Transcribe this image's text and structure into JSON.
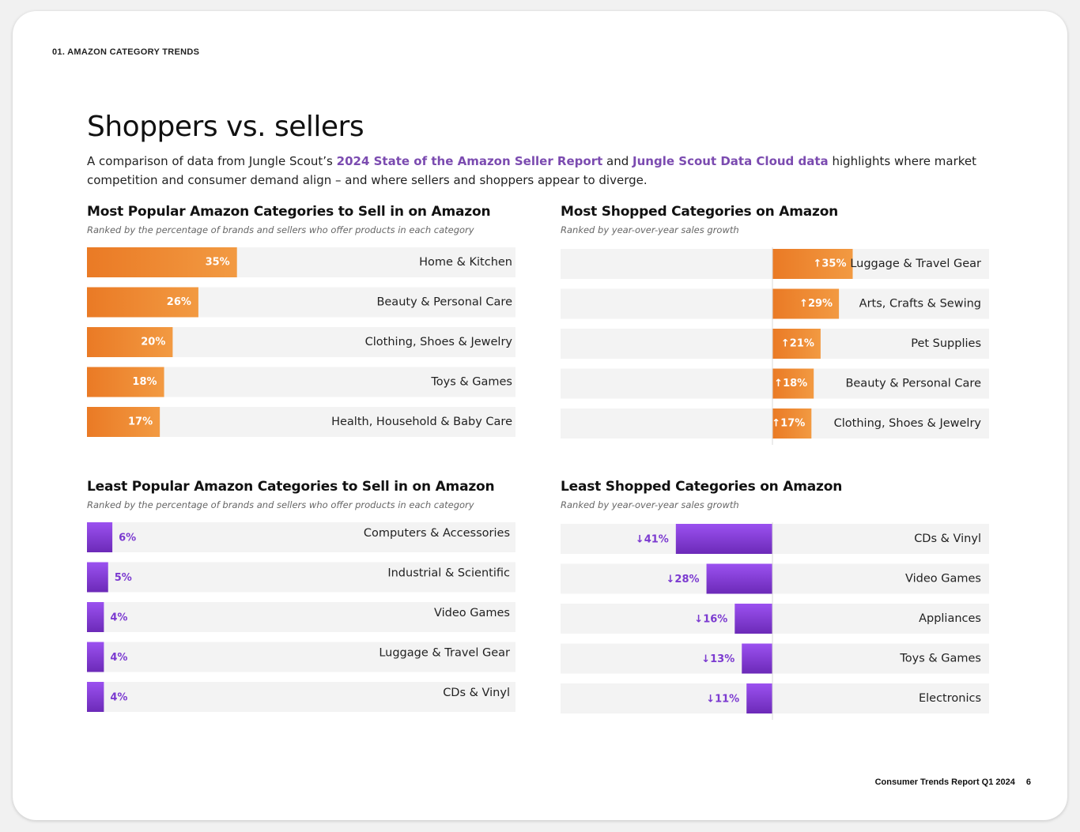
{
  "header": {
    "section_label": "01. AMAZON CATEGORY TRENDS",
    "title": "Shoppers vs. sellers",
    "intro_1": "A comparison of data from Jungle Scout’s ",
    "intro_link_1": "2024 State of the Amazon Seller Report",
    "intro_2": " and ",
    "intro_link_2": "Jungle Scout Data Cloud data",
    "intro_3": " highlights where market competition and consumer demand align –  and where sellers and shoppers appear to diverge."
  },
  "colors": {
    "orange": "#f07f24",
    "purple": "#8a3fe0",
    "link_purple": "#7b4bb0",
    "track": "#f3f3f3"
  },
  "chart_data": [
    {
      "type": "bar",
      "title": "Most Popular Amazon Categories to Sell in on Amazon",
      "subtitle": "Ranked by the percentage of brands and sellers who offer products in each category",
      "categories": [
        "Home & Kitchen",
        "Beauty & Personal Care",
        "Clothing, Shoes & Jewelry",
        "Toys & Games",
        "Health, Household & Baby Care"
      ],
      "values": [
        35,
        26,
        20,
        18,
        17
      ],
      "labels": [
        "35%",
        "26%",
        "20%",
        "18%",
        "17%"
      ],
      "unit": "%"
    },
    {
      "type": "bar",
      "title": "Most Shopped Categories on Amazon",
      "subtitle": "Ranked by year-over-year sales growth",
      "categories": [
        "Luggage & Travel Gear",
        "Arts, Crafts & Sewing",
        "Pet Supplies",
        "Beauty & Personal Care",
        "Clothing, Shoes & Jewelry"
      ],
      "values": [
        35,
        29,
        21,
        18,
        17
      ],
      "labels": [
        "↑35%",
        "↑29%",
        "↑21%",
        "↑18%",
        "↑17%"
      ],
      "unit": "%"
    },
    {
      "type": "bar",
      "title": "Least Popular Amazon Categories to Sell in on Amazon",
      "subtitle": "Ranked by the percentage of brands and sellers who offer products in each category",
      "categories": [
        "Computers & Accessories",
        "Industrial & Scientific",
        "Video Games",
        "Luggage & Travel Gear",
        "CDs & Vinyl"
      ],
      "values": [
        6,
        5,
        4,
        4,
        4
      ],
      "labels": [
        "6%",
        "5%",
        "4%",
        "4%",
        "4%"
      ],
      "unit": "%"
    },
    {
      "type": "bar",
      "title": "Least Shopped Categories on Amazon",
      "subtitle": "Ranked by year-over-year sales growth",
      "categories": [
        "CDs & Vinyl",
        "Video Games",
        "Appliances",
        "Toys & Games",
        "Electronics"
      ],
      "values": [
        -41,
        -28,
        -16,
        -13,
        -11
      ],
      "labels": [
        "↓41%",
        "↓28%",
        "↓16%",
        "↓13%",
        "↓11%"
      ],
      "unit": "%"
    }
  ],
  "footer": {
    "report": "Consumer Trends Report Q1 2024",
    "page": "6"
  }
}
